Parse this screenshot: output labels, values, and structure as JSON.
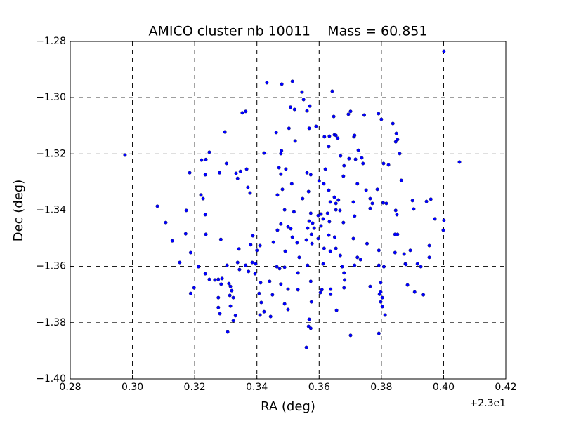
{
  "chart_data": {
    "type": "scatter",
    "title": "AMICO cluster nb 10011    Mass = 60.851",
    "x_label": "RA (deg)",
    "y_label": "Dec (deg)",
    "x_offset_text": "+2.3e1",
    "color": "#0000ff",
    "grid": true,
    "xlim": [
      0.28,
      0.42
    ],
    "xticks": [
      0.28,
      {
        "value": 0.3,
        "label": "0.30"
      },
      0.32,
      0.34,
      0.36,
      0.38,
      {
        "value": 0.4,
        "label": "0.40"
      },
      0.42
    ],
    "ylim": [
      -1.4,
      -1.28
    ],
    "yticks": [
      {
        "value": -1.4,
        "label": "−1.40"
      },
      {
        "value": -1.38,
        "label": "−1.38"
      },
      {
        "value": -1.36,
        "label": "−1.36"
      },
      {
        "value": -1.34,
        "label": "−1.34"
      },
      {
        "value": -1.32,
        "label": "−1.32"
      },
      {
        "value": -1.3,
        "label": "−1.30"
      },
      {
        "value": -1.28,
        "label": "−1.28"
      }
    ],
    "x": [
      0.4001,
      0.2976,
      0.4051,
      0.308,
      0.3107,
      0.3128,
      0.3152,
      0.3184,
      0.3173,
      0.3171,
      0.3187,
      0.3198,
      0.3187,
      0.3212,
      0.3222,
      0.3236,
      0.3247,
      0.3234,
      0.322,
      0.3227,
      0.3234,
      0.3236,
      0.3234,
      0.3247,
      0.3265,
      0.3276,
      0.3285,
      0.3276,
      0.3276,
      0.3281,
      0.3288,
      0.3297,
      0.3302,
      0.328,
      0.3284,
      0.3304,
      0.331,
      0.3315,
      0.3313,
      0.3319,
      0.3315,
      0.3324,
      0.3306,
      0.3324,
      0.3331,
      0.3333,
      0.3338,
      0.3347,
      0.3353,
      0.3364,
      0.3367,
      0.3371,
      0.3378,
      0.3342,
      0.3338,
      0.3344,
      0.3364,
      0.3373,
      0.3385,
      0.338,
      0.3387,
      0.34,
      0.341,
      0.3396,
      0.3394,
      0.3412,
      0.3407,
      0.3414,
      0.3423,
      0.341,
      0.3444,
      0.3441,
      0.345,
      0.3423,
      0.3432,
      0.3462,
      0.3477,
      0.3479,
      0.3471,
      0.3477,
      0.3493,
      0.3482,
      0.3466,
      0.3489,
      0.3477,
      0.3466,
      0.3453,
      0.3464,
      0.3473,
      0.3489,
      0.3477,
      0.35,
      0.3489,
      0.35,
      0.348,
      0.3514,
      0.3508,
      0.3521,
      0.3503,
      0.3523,
      0.3512,
      0.3519,
      0.35,
      0.3509,
      0.3491,
      0.3514,
      0.3529,
      0.3536,
      0.3532,
      0.3532,
      0.3545,
      0.355,
      0.3561,
      0.357,
      0.3568,
      0.3561,
      0.3573,
      0.3566,
      0.3547,
      0.3573,
      0.3568,
      0.3579,
      0.3563,
      0.3584,
      0.3575,
      0.3559,
      0.3577,
      0.3563,
      0.3573,
      0.3568,
      0.3566,
      0.3573,
      0.3559,
      0.3575,
      0.3597,
      0.3606,
      0.3613,
      0.3606,
      0.3597,
      0.3616,
      0.3613,
      0.3609,
      0.3604,
      0.359,
      0.3617,
      0.362,
      0.3615,
      0.36,
      0.3631,
      0.3633,
      0.3631,
      0.3636,
      0.3627,
      0.3633,
      0.3631,
      0.3642,
      0.3647,
      0.3649,
      0.3654,
      0.366,
      0.3649,
      0.3662,
      0.3654,
      0.3654,
      0.3667,
      0.365,
      0.3636,
      0.3654,
      0.3668,
      0.3637,
      0.3637,
      0.3656,
      0.3669,
      0.368,
      0.3678,
      0.3678,
      0.3674,
      0.368,
      0.3682,
      0.368,
      0.3696,
      0.3694,
      0.3701,
      0.3701,
      0.3712,
      0.3714,
      0.3717,
      0.3726,
      0.3723,
      0.371,
      0.3714,
      0.371,
      0.3723,
      0.3733,
      0.3714,
      0.3737,
      0.3745,
      0.3741,
      0.3751,
      0.3764,
      0.3771,
      0.3764,
      0.3754,
      0.3764,
      0.3791,
      0.38,
      0.3787,
      0.3806,
      0.3816,
      0.3792,
      0.3792,
      0.3808,
      0.3798,
      0.3798,
      0.3794,
      0.3803,
      0.3798,
      0.3803,
      0.3812,
      0.3792,
      0.3823,
      0.3807,
      0.3837,
      0.3848,
      0.3852,
      0.3846,
      0.3859,
      0.3864,
      0.3846,
      0.385,
      0.3844,
      0.3852,
      0.3844,
      0.3873,
      0.3877,
      0.3884,
      0.3893,
      0.39,
      0.3904,
      0.3907,
      0.3916,
      0.3927,
      0.3945,
      0.3959,
      0.3954,
      0.3954,
      0.3972,
      0.4001,
      0.3999,
      0.3935,
      0.3879
    ],
    "values": [
      -1.2835,
      -1.3204,
      -1.3229,
      -1.3386,
      -1.3444,
      -1.3509,
      -1.3586,
      -1.3267,
      -1.3401,
      -1.3484,
      -1.3551,
      -1.3676,
      -1.3696,
      -1.3601,
      -1.3222,
      -1.322,
      -1.3194,
      -1.3274,
      -1.3346,
      -1.3359,
      -1.3416,
      -1.3486,
      -1.3626,
      -1.3646,
      -1.3648,
      -1.3646,
      -1.3663,
      -1.3711,
      -1.3746,
      -1.3768,
      -1.3643,
      -1.3122,
      -1.3234,
      -1.3267,
      -1.3504,
      -1.3596,
      -1.3661,
      -1.3671,
      -1.3703,
      -1.3686,
      -1.3741,
      -1.3711,
      -1.3833,
      -1.3793,
      -1.3775,
      -1.3269,
      -1.3287,
      -1.3262,
      -1.3054,
      -1.3049,
      -1.3254,
      -1.3319,
      -1.3339,
      -1.3538,
      -1.3586,
      -1.3611,
      -1.3596,
      -1.3618,
      -1.3586,
      -1.3523,
      -1.3491,
      -1.3543,
      -1.3526,
      -1.3591,
      -1.3626,
      -1.3658,
      -1.3696,
      -1.3728,
      -1.3761,
      -1.3773,
      -1.3778,
      -1.3653,
      -1.3701,
      -1.3197,
      -1.2947,
      -1.3124,
      -1.3199,
      -1.3189,
      -1.3249,
      -1.3272,
      -1.3254,
      -1.3326,
      -1.3346,
      -1.3399,
      -1.3449,
      -1.3471,
      -1.3514,
      -1.3601,
      -1.3608,
      -1.3603,
      -1.3663,
      -1.3681,
      -1.3733,
      -1.3753,
      -1.2952,
      -1.2942,
      -1.3034,
      -1.3042,
      -1.3109,
      -1.3154,
      -1.3306,
      -1.3406,
      -1.3459,
      -1.3466,
      -1.3546,
      -1.3496,
      -1.3516,
      -1.3568,
      -1.3623,
      -1.3683,
      -1.298,
      -1.3007,
      -1.3047,
      -1.303,
      -1.3109,
      -1.3267,
      -1.3274,
      -1.3334,
      -1.3359,
      -1.3411,
      -1.3439,
      -1.3446,
      -1.3464,
      -1.3464,
      -1.3486,
      -1.3506,
      -1.3519,
      -1.3596,
      -1.3653,
      -1.3788,
      -1.3813,
      -1.382,
      -1.3888,
      -1.3726,
      -1.3419,
      -1.3414,
      -1.3431,
      -1.3456,
      -1.3501,
      -1.3536,
      -1.3591,
      -1.3683,
      -1.3693,
      -1.3102,
      -1.3139,
      -1.3254,
      -1.3306,
      -1.3296,
      -1.3174,
      -1.3137,
      -1.3329,
      -1.3371,
      -1.3411,
      -1.3441,
      -1.3489,
      -1.2977,
      -1.3067,
      -1.3132,
      -1.3134,
      -1.3144,
      -1.3354,
      -1.3364,
      -1.3376,
      -1.3399,
      -1.3401,
      -1.3496,
      -1.3546,
      -1.3536,
      -1.3561,
      -1.3681,
      -1.3699,
      -1.3756,
      -1.3207,
      -1.3242,
      -1.3279,
      -1.3444,
      -1.3601,
      -1.3623,
      -1.3648,
      -1.3676,
      -1.3217,
      -1.3059,
      -1.3049,
      -1.3845,
      -1.3139,
      -1.3134,
      -1.3219,
      -1.3187,
      -1.3306,
      -1.3371,
      -1.3421,
      -1.3501,
      -1.3568,
      -1.3576,
      -1.3596,
      -1.3214,
      -1.3062,
      -1.3234,
      -1.3329,
      -1.3359,
      -1.3376,
      -1.3394,
      -1.3519,
      -1.3671,
      -1.3057,
      -1.3077,
      -1.3326,
      -1.3374,
      -1.3376,
      -1.3543,
      -1.3596,
      -1.3601,
      -1.3658,
      -1.3691,
      -1.3699,
      -1.3711,
      -1.3726,
      -1.3743,
      -1.3773,
      -1.3838,
      -1.3239,
      -1.3234,
      -1.3092,
      -1.3127,
      -1.3149,
      -1.3157,
      -1.3199,
      -1.3294,
      -1.3401,
      -1.3416,
      -1.3486,
      -1.3486,
      -1.3551,
      -1.3556,
      -1.3591,
      -1.3666,
      -1.3543,
      -1.3366,
      -1.3396,
      -1.3691,
      -1.3591,
      -1.3601,
      -1.3369,
      -1.3361,
      -1.3526,
      -1.3568,
      -1.3431,
      -1.3436,
      -1.3471,
      -1.3701,
      -1.3593
    ]
  }
}
